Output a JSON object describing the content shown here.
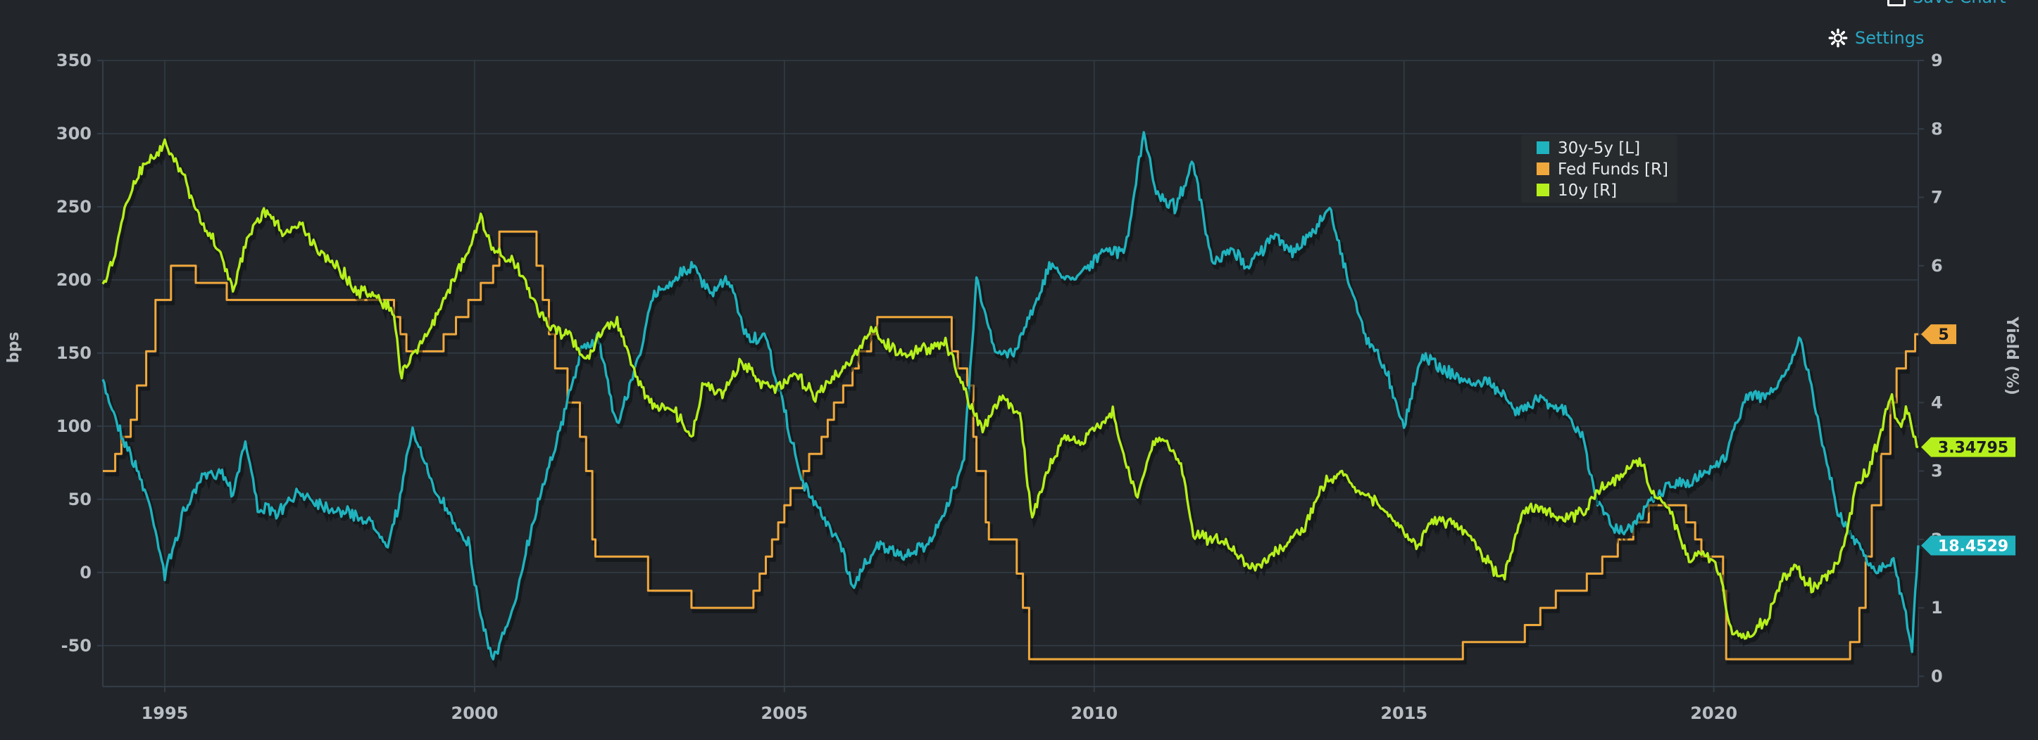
{
  "header": {
    "top_link_label": "Save Chart",
    "settings_label": "Settings"
  },
  "colors": {
    "background": "#22262a",
    "grid": "#333c47",
    "spread": "#1fb3bf",
    "fedfunds": "#f0a83c",
    "tenyear": "#b6f01c",
    "tick_text": "#b8bec4",
    "link": "#2aa7c7"
  },
  "chart_data": {
    "type": "line",
    "title": "",
    "xlabel": "",
    "ylabel_left": "bps",
    "ylabel_right": "Yield (%)",
    "xlim": [
      1994.0,
      2023.3
    ],
    "ylim_left": [
      -78,
      350
    ],
    "ylim_right": [
      -0.15,
      9
    ],
    "x_ticks": [
      1995,
      2000,
      2005,
      2010,
      2015,
      2020
    ],
    "y_left_ticks": [
      -50,
      0,
      50,
      100,
      150,
      200,
      250,
      300,
      350
    ],
    "y_right_ticks": [
      0,
      1,
      2,
      3,
      4,
      5,
      6,
      7,
      8,
      9
    ],
    "grid": true,
    "legend_position": "top-right",
    "series": [
      {
        "name": "30y-5y [L]",
        "axis": "left",
        "color": "#1fb3bf",
        "last_value_label": "18.4529",
        "points": [
          [
            1994.0,
            130
          ],
          [
            1994.3,
            95
          ],
          [
            1994.6,
            65
          ],
          [
            1994.8,
            40
          ],
          [
            1995.0,
            -2
          ],
          [
            1995.3,
            40
          ],
          [
            1995.6,
            65
          ],
          [
            1995.9,
            70
          ],
          [
            1996.1,
            55
          ],
          [
            1996.3,
            90
          ],
          [
            1996.5,
            45
          ],
          [
            1996.8,
            40
          ],
          [
            1997.2,
            55
          ],
          [
            1997.6,
            45
          ],
          [
            1998.0,
            40
          ],
          [
            1998.3,
            35
          ],
          [
            1998.6,
            20
          ],
          [
            1998.8,
            50
          ],
          [
            1999.0,
            100
          ],
          [
            1999.3,
            60
          ],
          [
            1999.6,
            40
          ],
          [
            1999.9,
            20
          ],
          [
            2000.1,
            -30
          ],
          [
            2000.3,
            -60
          ],
          [
            2000.6,
            -30
          ],
          [
            2000.8,
            10
          ],
          [
            2001.1,
            60
          ],
          [
            2001.4,
            100
          ],
          [
            2001.7,
            150
          ],
          [
            2002.0,
            160
          ],
          [
            2002.3,
            100
          ],
          [
            2002.6,
            140
          ],
          [
            2002.9,
            190
          ],
          [
            2003.2,
            200
          ],
          [
            2003.5,
            210
          ],
          [
            2003.8,
            190
          ],
          [
            2004.1,
            200
          ],
          [
            2004.4,
            160
          ],
          [
            2004.7,
            160
          ],
          [
            2005.0,
            110
          ],
          [
            2005.3,
            60
          ],
          [
            2005.6,
            40
          ],
          [
            2005.9,
            20
          ],
          [
            2006.1,
            -10
          ],
          [
            2006.5,
            20
          ],
          [
            2006.9,
            10
          ],
          [
            2007.3,
            20
          ],
          [
            2007.6,
            40
          ],
          [
            2007.9,
            80
          ],
          [
            2008.1,
            200
          ],
          [
            2008.4,
            150
          ],
          [
            2008.7,
            150
          ],
          [
            2009.0,
            180
          ],
          [
            2009.3,
            210
          ],
          [
            2009.6,
            200
          ],
          [
            2009.9,
            210
          ],
          [
            2010.2,
            220
          ],
          [
            2010.5,
            220
          ],
          [
            2010.8,
            300
          ],
          [
            2011.0,
            260
          ],
          [
            2011.3,
            250
          ],
          [
            2011.6,
            280
          ],
          [
            2011.9,
            210
          ],
          [
            2012.2,
            220
          ],
          [
            2012.5,
            210
          ],
          [
            2012.9,
            230
          ],
          [
            2013.2,
            220
          ],
          [
            2013.5,
            230
          ],
          [
            2013.8,
            250
          ],
          [
            2014.1,
            200
          ],
          [
            2014.4,
            160
          ],
          [
            2014.7,
            140
          ],
          [
            2015.0,
            100
          ],
          [
            2015.3,
            150
          ],
          [
            2015.6,
            140
          ],
          [
            2016.0,
            130
          ],
          [
            2016.4,
            130
          ],
          [
            2016.8,
            110
          ],
          [
            2017.2,
            120
          ],
          [
            2017.6,
            110
          ],
          [
            2017.9,
            90
          ],
          [
            2018.1,
            50
          ],
          [
            2018.4,
            30
          ],
          [
            2018.7,
            30
          ],
          [
            2019.0,
            50
          ],
          [
            2019.3,
            60
          ],
          [
            2019.6,
            60
          ],
          [
            2019.9,
            70
          ],
          [
            2020.2,
            80
          ],
          [
            2020.5,
            120
          ],
          [
            2020.8,
            120
          ],
          [
            2021.1,
            130
          ],
          [
            2021.4,
            160
          ],
          [
            2021.7,
            100
          ],
          [
            2022.0,
            40
          ],
          [
            2022.3,
            20
          ],
          [
            2022.6,
            0
          ],
          [
            2022.9,
            10
          ],
          [
            2023.2,
            -50
          ],
          [
            2023.3,
            18.45
          ]
        ]
      },
      {
        "name": "Fed Funds [R]",
        "axis": "right",
        "color": "#f0a83c",
        "last_value_label": "5",
        "points": [
          [
            1994.0,
            3.0
          ],
          [
            1994.2,
            3.25
          ],
          [
            1994.3,
            3.5
          ],
          [
            1994.45,
            3.75
          ],
          [
            1994.55,
            4.25
          ],
          [
            1994.7,
            4.75
          ],
          [
            1994.85,
            5.5
          ],
          [
            1995.1,
            6.0
          ],
          [
            1995.5,
            5.75
          ],
          [
            1996.0,
            5.5
          ],
          [
            1997.2,
            5.5
          ],
          [
            1997.25,
            5.5
          ],
          [
            1998.7,
            5.25
          ],
          [
            1998.8,
            5.0
          ],
          [
            1998.9,
            4.75
          ],
          [
            1999.5,
            5.0
          ],
          [
            1999.7,
            5.25
          ],
          [
            1999.9,
            5.5
          ],
          [
            2000.1,
            5.75
          ],
          [
            2000.3,
            6.0
          ],
          [
            2000.4,
            6.5
          ],
          [
            2001.0,
            6.0
          ],
          [
            2001.1,
            5.5
          ],
          [
            2001.2,
            5.0
          ],
          [
            2001.3,
            4.5
          ],
          [
            2001.5,
            4.0
          ],
          [
            2001.7,
            3.5
          ],
          [
            2001.8,
            3.0
          ],
          [
            2001.9,
            2.0
          ],
          [
            2001.95,
            1.75
          ],
          [
            2002.8,
            1.25
          ],
          [
            2003.5,
            1.0
          ],
          [
            2004.5,
            1.25
          ],
          [
            2004.6,
            1.5
          ],
          [
            2004.7,
            1.75
          ],
          [
            2004.8,
            2.0
          ],
          [
            2004.9,
            2.25
          ],
          [
            2005.0,
            2.5
          ],
          [
            2005.1,
            2.75
          ],
          [
            2005.3,
            3.0
          ],
          [
            2005.4,
            3.25
          ],
          [
            2005.6,
            3.5
          ],
          [
            2005.7,
            3.75
          ],
          [
            2005.8,
            4.0
          ],
          [
            2005.95,
            4.25
          ],
          [
            2006.1,
            4.5
          ],
          [
            2006.2,
            4.75
          ],
          [
            2006.4,
            5.0
          ],
          [
            2006.5,
            5.25
          ],
          [
            2007.6,
            5.25
          ],
          [
            2007.7,
            4.75
          ],
          [
            2007.8,
            4.5
          ],
          [
            2007.95,
            4.25
          ],
          [
            2008.05,
            3.5
          ],
          [
            2008.1,
            3.0
          ],
          [
            2008.25,
            2.25
          ],
          [
            2008.3,
            2.0
          ],
          [
            2008.75,
            1.5
          ],
          [
            2008.85,
            1.0
          ],
          [
            2008.95,
            0.25
          ],
          [
            2015.95,
            0.5
          ],
          [
            2016.95,
            0.75
          ],
          [
            2017.2,
            1.0
          ],
          [
            2017.45,
            1.25
          ],
          [
            2017.95,
            1.5
          ],
          [
            2018.2,
            1.75
          ],
          [
            2018.45,
            2.0
          ],
          [
            2018.7,
            2.25
          ],
          [
            2018.95,
            2.5
          ],
          [
            2019.55,
            2.25
          ],
          [
            2019.7,
            2.0
          ],
          [
            2019.8,
            1.75
          ],
          [
            2020.15,
            1.25
          ],
          [
            2020.2,
            0.25
          ],
          [
            2022.2,
            0.5
          ],
          [
            2022.35,
            1.0
          ],
          [
            2022.45,
            1.75
          ],
          [
            2022.55,
            2.5
          ],
          [
            2022.7,
            3.25
          ],
          [
            2022.85,
            4.0
          ],
          [
            2022.95,
            4.5
          ],
          [
            2023.1,
            4.75
          ],
          [
            2023.25,
            5.0
          ],
          [
            2023.3,
            5.0
          ]
        ]
      },
      {
        "name": "10y [R]",
        "axis": "right",
        "color": "#b6f01c",
        "last_value_label": "3.34795",
        "points": [
          [
            1994.0,
            5.7
          ],
          [
            1994.2,
            6.2
          ],
          [
            1994.4,
            7.0
          ],
          [
            1994.6,
            7.4
          ],
          [
            1994.8,
            7.6
          ],
          [
            1995.0,
            7.8
          ],
          [
            1995.3,
            7.3
          ],
          [
            1995.6,
            6.6
          ],
          [
            1995.9,
            6.2
          ],
          [
            1996.1,
            5.6
          ],
          [
            1996.3,
            6.3
          ],
          [
            1996.6,
            6.8
          ],
          [
            1996.9,
            6.5
          ],
          [
            1997.2,
            6.6
          ],
          [
            1997.5,
            6.2
          ],
          [
            1997.8,
            6.0
          ],
          [
            1998.1,
            5.6
          ],
          [
            1998.4,
            5.6
          ],
          [
            1998.7,
            5.3
          ],
          [
            1998.8,
            4.4
          ],
          [
            1999.0,
            4.7
          ],
          [
            1999.3,
            5.1
          ],
          [
            1999.6,
            5.7
          ],
          [
            1999.9,
            6.2
          ],
          [
            2000.1,
            6.7
          ],
          [
            2000.3,
            6.2
          ],
          [
            2000.6,
            6.1
          ],
          [
            2000.9,
            5.6
          ],
          [
            2001.2,
            5.1
          ],
          [
            2001.5,
            5.0
          ],
          [
            2001.8,
            4.6
          ],
          [
            2002.0,
            5.0
          ],
          [
            2002.3,
            5.2
          ],
          [
            2002.6,
            4.4
          ],
          [
            2002.9,
            3.9
          ],
          [
            2003.2,
            3.9
          ],
          [
            2003.5,
            3.5
          ],
          [
            2003.7,
            4.3
          ],
          [
            2004.0,
            4.1
          ],
          [
            2004.3,
            4.6
          ],
          [
            2004.6,
            4.3
          ],
          [
            2004.9,
            4.2
          ],
          [
            2005.2,
            4.4
          ],
          [
            2005.5,
            4.1
          ],
          [
            2005.8,
            4.4
          ],
          [
            2006.1,
            4.6
          ],
          [
            2006.4,
            5.1
          ],
          [
            2006.7,
            4.8
          ],
          [
            2007.0,
            4.7
          ],
          [
            2007.3,
            4.8
          ],
          [
            2007.6,
            4.9
          ],
          [
            2007.9,
            4.2
          ],
          [
            2008.2,
            3.6
          ],
          [
            2008.5,
            4.1
          ],
          [
            2008.8,
            3.8
          ],
          [
            2009.0,
            2.3
          ],
          [
            2009.2,
            2.9
          ],
          [
            2009.5,
            3.5
          ],
          [
            2009.8,
            3.4
          ],
          [
            2010.1,
            3.7
          ],
          [
            2010.3,
            3.9
          ],
          [
            2010.5,
            3.1
          ],
          [
            2010.7,
            2.6
          ],
          [
            2010.9,
            3.3
          ],
          [
            2011.1,
            3.5
          ],
          [
            2011.4,
            3.1
          ],
          [
            2011.6,
            2.1
          ],
          [
            2011.9,
            2.0
          ],
          [
            2012.2,
            1.9
          ],
          [
            2012.5,
            1.6
          ],
          [
            2012.8,
            1.7
          ],
          [
            2013.1,
            1.9
          ],
          [
            2013.4,
            2.2
          ],
          [
            2013.7,
            2.8
          ],
          [
            2014.0,
            3.0
          ],
          [
            2014.3,
            2.7
          ],
          [
            2014.6,
            2.5
          ],
          [
            2014.9,
            2.2
          ],
          [
            2015.2,
            1.9
          ],
          [
            2015.5,
            2.3
          ],
          [
            2015.8,
            2.2
          ],
          [
            2016.1,
            2.0
          ],
          [
            2016.4,
            1.6
          ],
          [
            2016.6,
            1.4
          ],
          [
            2016.9,
            2.4
          ],
          [
            2017.2,
            2.5
          ],
          [
            2017.5,
            2.3
          ],
          [
            2017.9,
            2.4
          ],
          [
            2018.2,
            2.8
          ],
          [
            2018.5,
            2.9
          ],
          [
            2018.8,
            3.2
          ],
          [
            2019.0,
            2.7
          ],
          [
            2019.3,
            2.4
          ],
          [
            2019.6,
            1.7
          ],
          [
            2019.9,
            1.8
          ],
          [
            2020.1,
            1.5
          ],
          [
            2020.3,
            0.6
          ],
          [
            2020.6,
            0.6
          ],
          [
            2020.9,
            0.9
          ],
          [
            2021.1,
            1.4
          ],
          [
            2021.3,
            1.6
          ],
          [
            2021.6,
            1.3
          ],
          [
            2021.9,
            1.5
          ],
          [
            2022.1,
            1.9
          ],
          [
            2022.3,
            2.8
          ],
          [
            2022.5,
            3.0
          ],
          [
            2022.7,
            3.6
          ],
          [
            2022.85,
            4.1
          ],
          [
            2023.0,
            3.6
          ],
          [
            2023.1,
            3.9
          ],
          [
            2023.3,
            3.35
          ]
        ]
      }
    ]
  }
}
